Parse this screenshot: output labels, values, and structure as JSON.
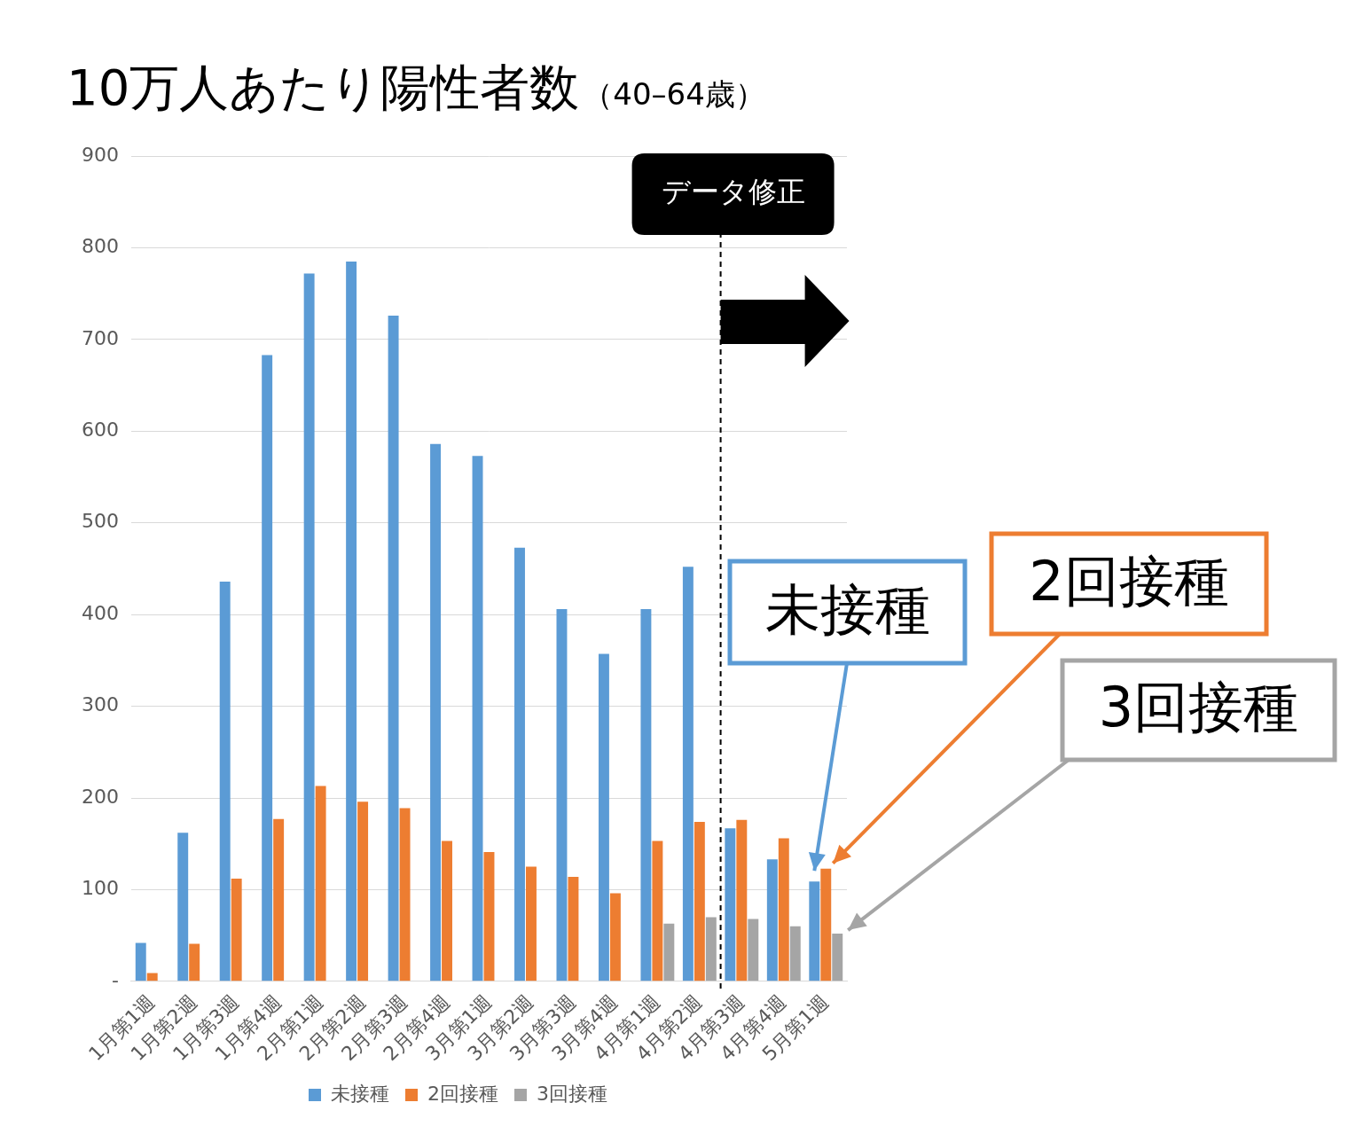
{
  "chart_data": {
    "type": "bar",
    "title": "10万人あたり陽性者数（40–64歳）",
    "categories": [
      "1月第1週",
      "1月第2週",
      "1月第3週",
      "1月第4週",
      "2月第1週",
      "2月第2週",
      "2月第3週",
      "2月第4週",
      "3月第1週",
      "3月第2週",
      "3月第3週",
      "3月第4週",
      "4月第1週",
      "4月第2週",
      "4月第3週",
      "4月第4週",
      "5月第1週"
    ],
    "series": [
      {
        "name": "未接種",
        "color": "#5b9bd5",
        "values": [
          42,
          162,
          436,
          683,
          772,
          785,
          726,
          586,
          573,
          473,
          406,
          357,
          406,
          452,
          167,
          133,
          109
        ]
      },
      {
        "name": "2回接種",
        "color": "#ed7d31",
        "values": [
          9,
          41,
          112,
          177,
          213,
          196,
          189,
          153,
          141,
          125,
          114,
          96,
          153,
          174,
          176,
          156,
          123
        ]
      },
      {
        "name": "3回接種",
        "color": "#a5a5a5",
        "values": [
          null,
          null,
          null,
          null,
          null,
          null,
          null,
          null,
          null,
          null,
          null,
          null,
          63,
          70,
          68,
          60,
          52
        ]
      }
    ],
    "ylim": [
      0,
      900
    ],
    "yticks": [
      {
        "value": 0,
        "label": "-"
      },
      100,
      200,
      300,
      400,
      500,
      600,
      700,
      800,
      900
    ],
    "grid": true,
    "legend": "bottom",
    "annotations": [
      "データ修正"
    ]
  }
}
